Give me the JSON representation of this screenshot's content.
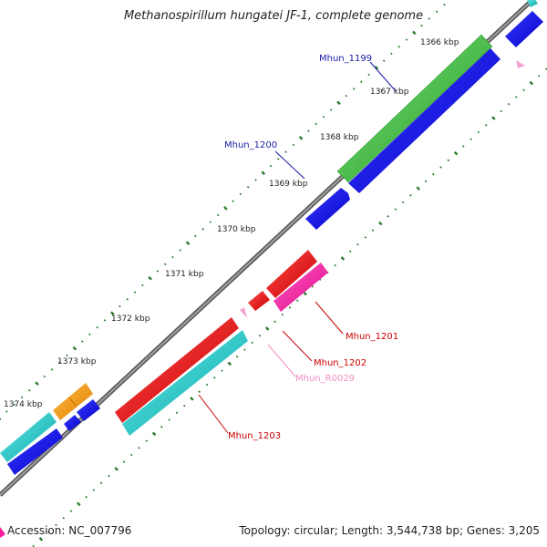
{
  "title": "Methanospirillum hungatei JF-1, complete genome",
  "footer": {
    "accession": "Accession: NC_007796",
    "topology": "Topology: circular; Length: 3,544,738 bp; Genes: 3,205"
  },
  "ticks": [
    {
      "label": "1366 kbp"
    },
    {
      "label": "1367 kbp"
    },
    {
      "label": "1368 kbp"
    },
    {
      "label": "1369 kbp"
    },
    {
      "label": "1370 kbp"
    },
    {
      "label": "1371 kbp"
    },
    {
      "label": "1372 kbp"
    },
    {
      "label": "1373 kbp"
    },
    {
      "label": "1374 kbp"
    }
  ],
  "gene_labels": [
    {
      "label": "Mhun_1199",
      "color": "#1a1aa6"
    },
    {
      "label": "Mhun_1200",
      "color": "#1a1aa6"
    },
    {
      "label": "Mhun_1201",
      "color": "#cc0000"
    },
    {
      "label": "Mhun_1202",
      "color": "#cc0000"
    },
    {
      "label": "Mhun_R0029",
      "color": "#f08cc0"
    },
    {
      "label": "Mhun_1203",
      "color": "#cc0000"
    }
  ],
  "colors": {
    "green": "#3cb83c",
    "blue": "#0000e6",
    "red": "#e60000",
    "magenta": "#ff1aa0",
    "cyan": "#1ac8c8",
    "orange": "#ff9900",
    "pink": "#f4a6d0",
    "backbone": "#808080",
    "dots": "#2a7a2a"
  }
}
